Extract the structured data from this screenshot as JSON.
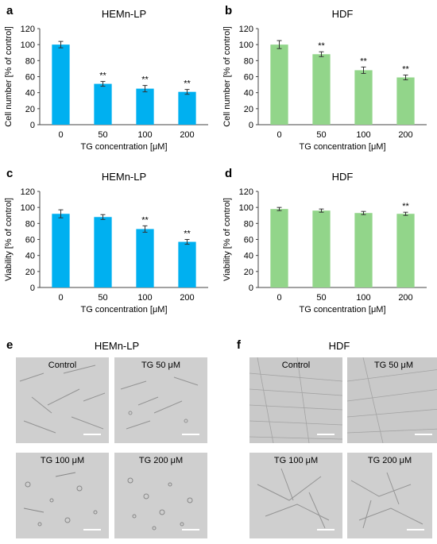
{
  "charts": [
    {
      "letter": "a",
      "title": "HEMn-LP",
      "color": "#00B0F0",
      "ylabel": "Cell number [% of control]",
      "xlabel": "TG concentration [μM]",
      "ylim": [
        0,
        120
      ],
      "yticks": [
        "0",
        "20",
        "40",
        "60",
        "80",
        "100",
        "120"
      ],
      "categories": [
        "0",
        "50",
        "100",
        "200"
      ],
      "values": [
        100,
        51,
        45,
        41
      ],
      "errors": [
        4,
        3,
        4,
        3
      ],
      "annotations": [
        "",
        "**",
        "**",
        "**"
      ]
    },
    {
      "letter": "b",
      "title": "HDF",
      "color": "#92D58A",
      "ylabel": "Cell number [% of control]",
      "xlabel": "TG concentration [μM]",
      "ylim": [
        0,
        120
      ],
      "yticks": [
        "0",
        "20",
        "40",
        "60",
        "80",
        "100",
        "120"
      ],
      "categories": [
        "0",
        "50",
        "100",
        "200"
      ],
      "values": [
        100,
        88,
        68,
        59
      ],
      "errors": [
        5,
        3,
        4,
        3
      ],
      "annotations": [
        "",
        "**",
        "**",
        "**"
      ]
    },
    {
      "letter": "c",
      "title": "HEMn-LP",
      "color": "#00B0F0",
      "ylabel": "Viability [% of control]",
      "xlabel": "TG concentration [μM]",
      "ylim": [
        0,
        120
      ],
      "yticks": [
        "0",
        "20",
        "40",
        "60",
        "80",
        "100",
        "120"
      ],
      "categories": [
        "0",
        "50",
        "100",
        "200"
      ],
      "values": [
        92,
        88,
        73,
        57
      ],
      "errors": [
        5,
        3,
        4,
        3
      ],
      "annotations": [
        "",
        "",
        "**",
        "**"
      ]
    },
    {
      "letter": "d",
      "title": "HDF",
      "color": "#92D58A",
      "ylabel": "Viability [% of control]",
      "xlabel": "TG concentration [μM]",
      "ylim": [
        0,
        120
      ],
      "yticks": [
        "0",
        "20",
        "40",
        "60",
        "80",
        "100",
        "120"
      ],
      "categories": [
        "0",
        "50",
        "100",
        "200"
      ],
      "values": [
        98,
        96,
        93,
        92
      ],
      "errors": [
        2,
        2,
        2,
        2
      ],
      "annotations": [
        "",
        "",
        "",
        "**"
      ]
    }
  ],
  "chart_data": [
    {
      "type": "bar",
      "title": "HEMn-LP",
      "xlabel": "TG concentration [μM]",
      "ylabel": "Cell number [% of control]",
      "categories": [
        "0",
        "50",
        "100",
        "200"
      ],
      "values": [
        100,
        51,
        45,
        41
      ],
      "ylim": [
        0,
        120
      ]
    },
    {
      "type": "bar",
      "title": "HDF",
      "xlabel": "TG concentration [μM]",
      "ylabel": "Cell number [% of control]",
      "categories": [
        "0",
        "50",
        "100",
        "200"
      ],
      "values": [
        100,
        88,
        68,
        59
      ],
      "ylim": [
        0,
        120
      ]
    },
    {
      "type": "bar",
      "title": "HEMn-LP",
      "xlabel": "TG concentration [μM]",
      "ylabel": "Viability [% of control]",
      "categories": [
        "0",
        "50",
        "100",
        "200"
      ],
      "values": [
        92,
        88,
        73,
        57
      ],
      "ylim": [
        0,
        120
      ]
    },
    {
      "type": "bar",
      "title": "HDF",
      "xlabel": "TG concentration [μM]",
      "ylabel": "Viability [% of control]",
      "categories": [
        "0",
        "50",
        "100",
        "200"
      ],
      "values": [
        98,
        96,
        93,
        92
      ],
      "ylim": [
        0,
        120
      ]
    }
  ],
  "micrographs": {
    "e": {
      "letter": "e",
      "title": "HEMn-LP",
      "captions": [
        "Control",
        "TG 50 μM",
        "TG 100 μM",
        "TG 200 μM"
      ]
    },
    "f": {
      "letter": "f",
      "title": "HDF",
      "captions": [
        "Control",
        "TG 50 μM",
        "TG 100 μM",
        "TG 200 μM"
      ]
    }
  }
}
